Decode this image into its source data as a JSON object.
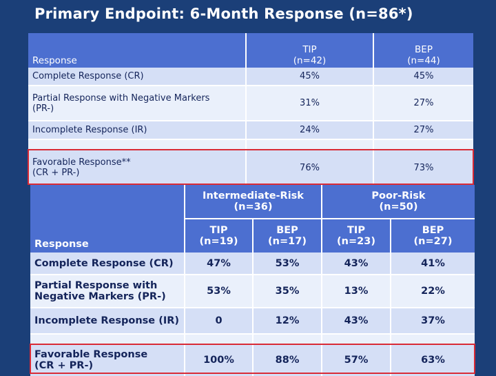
{
  "title": "Primary Endpoint: 6-Month Response (n=86*)",
  "table1": {
    "header_response": "Response",
    "col_tip": "TIP",
    "col_tip_n": "(n=42)",
    "col_bep": "BEP",
    "col_bep_n": "(n=44)",
    "rows": [
      {
        "label": "Complete Response (CR)",
        "label2": "",
        "tip": "45%",
        "bep": "45%"
      },
      {
        "label": "Partial Response with Negative Markers",
        "label2": "(PR-)",
        "tip": "31%",
        "bep": "27%"
      },
      {
        "label": "Incomplete Response (IR)",
        "label2": "",
        "tip": "24%",
        "bep": "27%"
      },
      {
        "label": "Favorable Response**",
        "label2": "(CR + PR-)",
        "tip": "76%",
        "bep": "73%"
      }
    ]
  },
  "table2": {
    "header_response": "Response",
    "group1": "Intermediate-Risk",
    "group1_n": "(n=36)",
    "group2": "Poor-Risk",
    "group2_n": "(n=50)",
    "sub": [
      {
        "name": "TIP",
        "n": "(n=19)"
      },
      {
        "name": "BEP",
        "n": "(n=17)"
      },
      {
        "name": "TIP",
        "n": "(n=23)"
      },
      {
        "name": "BEP",
        "n": "(n=27)"
      }
    ],
    "rows": [
      {
        "label": "Complete Response (CR)",
        "label2": "",
        "v": [
          "47%",
          "53%",
          "43%",
          "41%"
        ]
      },
      {
        "label": "Partial Response with",
        "label2": "Negative Markers (PR-)",
        "v": [
          "53%",
          "35%",
          "13%",
          "22%"
        ]
      },
      {
        "label": "Incomplete Response (IR)",
        "label2": "",
        "v": [
          "0",
          "12%",
          "43%",
          "37%"
        ]
      },
      {
        "label": "Favorable Response",
        "label2": "(CR + PR-)",
        "v": [
          "100%",
          "88%",
          "57%",
          "63%"
        ]
      }
    ]
  },
  "colors": {
    "background": "#1b3f78",
    "header_fill": "#4c6fd0",
    "row_fill_dark": "#d5dff6",
    "row_fill_light": "#eaf0fb",
    "highlight_border": "#d92a35"
  }
}
